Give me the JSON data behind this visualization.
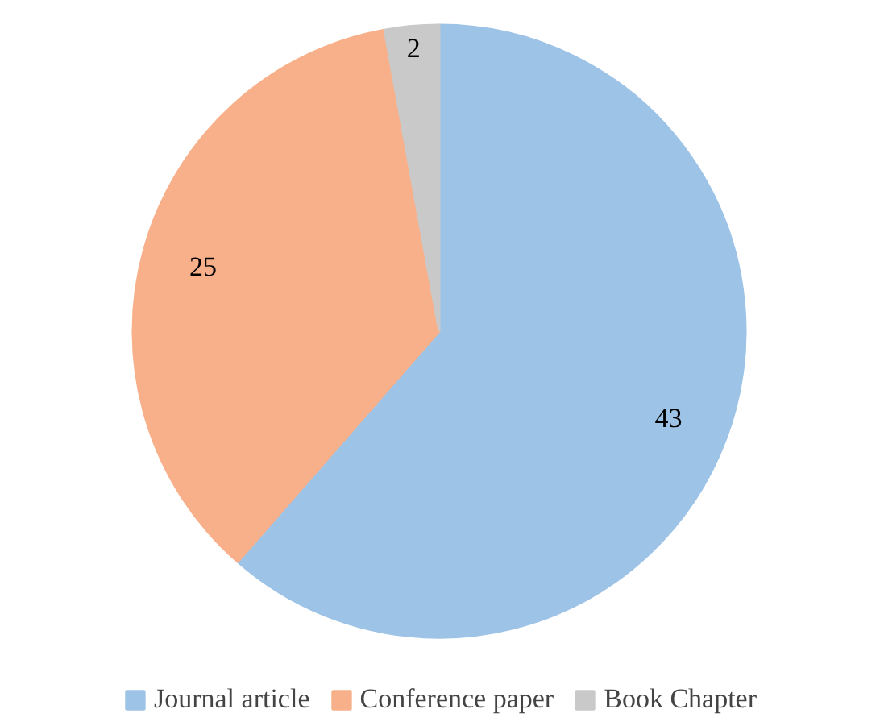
{
  "chart_data": {
    "type": "pie",
    "categories": [
      "Journal article",
      "Conference paper",
      "Book Chapter"
    ],
    "values": [
      43,
      25,
      2
    ],
    "colors": [
      "#9dc3e6",
      "#f8b08a",
      "#c9c9c9"
    ],
    "data_labels": true,
    "legend": "bottom"
  }
}
